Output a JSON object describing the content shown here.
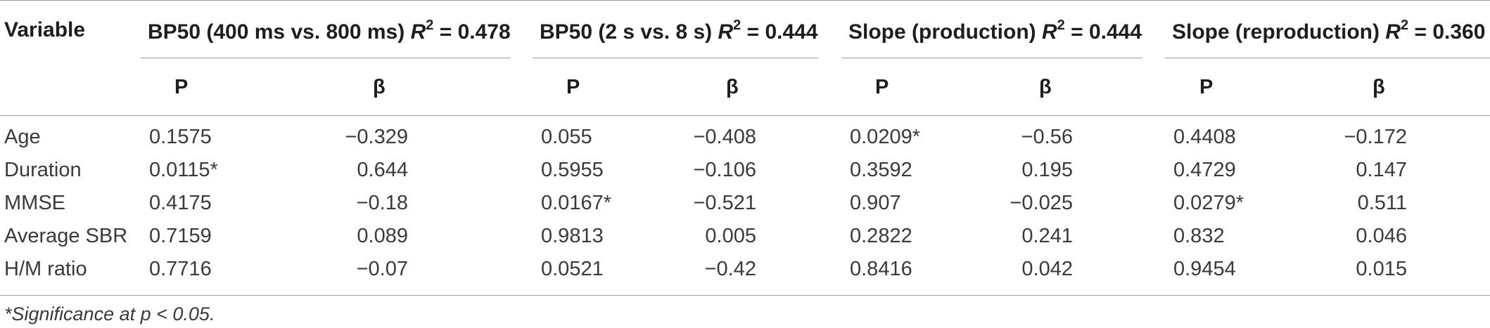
{
  "table": {
    "variable_header": "Variable",
    "groups": [
      {
        "title": "BP50 (400 ms vs. 800 ms) ",
        "r_label": "R",
        "r_sup": "2",
        "r_value": " = 0.478"
      },
      {
        "title": "BP50 (2 s vs. 8 s) ",
        "r_label": "R",
        "r_sup": "2",
        "r_value": " = 0.444"
      },
      {
        "title": "Slope (production) ",
        "r_label": "R",
        "r_sup": "2",
        "r_value": " = 0.444"
      },
      {
        "title": "Slope (reproduction) ",
        "r_label": "R",
        "r_sup": "2",
        "r_value": " = 0.360"
      }
    ],
    "sub_headers": {
      "p": "P",
      "beta": "β"
    },
    "rows": [
      {
        "label": "Age",
        "values": [
          "0.1575",
          "−0.329",
          "0.055",
          "−0.408",
          "0.0209*",
          "−0.56",
          "0.4408",
          "−0.172"
        ]
      },
      {
        "label": "Duration",
        "values": [
          "0.0115*",
          "0.644",
          "0.5955",
          "−0.106",
          "0.3592",
          "0.195",
          "0.4729",
          "0.147"
        ]
      },
      {
        "label": "MMSE",
        "values": [
          "0.4175",
          "−0.18",
          "0.0167*",
          "−0.521",
          "0.907",
          "−0.025",
          "0.0279*",
          "0.511"
        ]
      },
      {
        "label": "Average SBR",
        "values": [
          "0.7159",
          "0.089",
          "0.9813",
          "0.005",
          "0.2822",
          "0.241",
          "0.832",
          "0.046"
        ]
      },
      {
        "label": "H/M ratio",
        "values": [
          "0.7716",
          "−0.07",
          "0.0521",
          "−0.42",
          "0.8416",
          "0.042",
          "0.9454",
          "0.015"
        ]
      }
    ],
    "footnote": "*Significance at p < 0.05."
  }
}
